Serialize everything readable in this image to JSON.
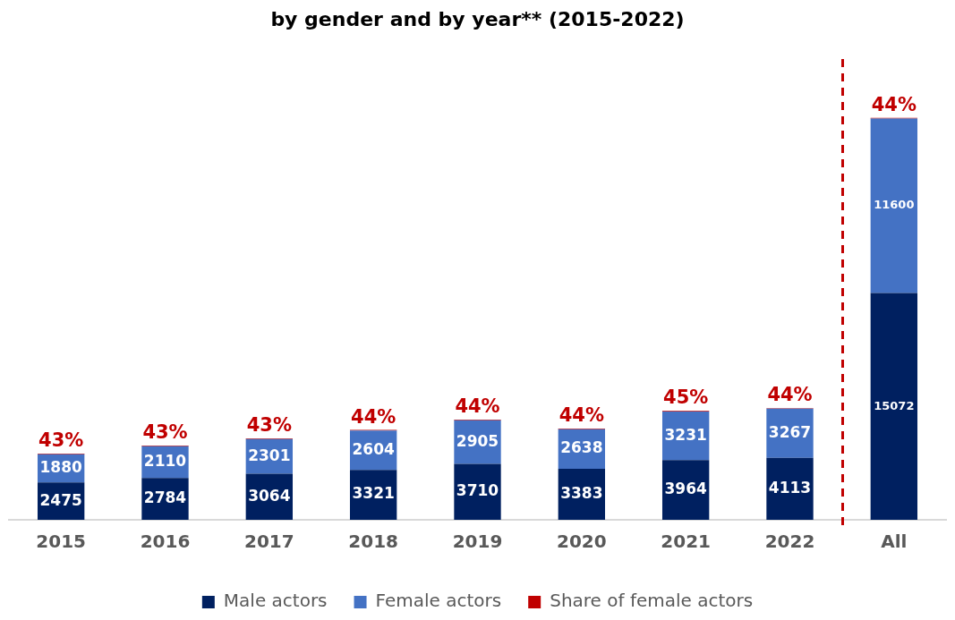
{
  "chart_data": {
    "type": "bar",
    "stacked": true,
    "title": "by gender and by year** (2015-2022)",
    "categories": [
      "2015",
      "2016",
      "2017",
      "2018",
      "2019",
      "2020",
      "2021",
      "2022",
      "All"
    ],
    "series": [
      {
        "name": "Male actors",
        "color": "#002060",
        "values": [
          2475,
          2784,
          3064,
          3321,
          3710,
          3383,
          3964,
          4113,
          15072
        ]
      },
      {
        "name": "Female actors",
        "color": "#4472c4",
        "values": [
          1880,
          2110,
          2301,
          2604,
          2905,
          2638,
          3231,
          3267,
          11600
        ]
      },
      {
        "name": "Share of female actors",
        "color": "#c00000",
        "values": [
          43,
          43,
          43,
          44,
          44,
          44,
          45,
          44,
          44
        ],
        "value_labels": [
          "43%",
          "43%",
          "43%",
          "44%",
          "44%",
          "44%",
          "45%",
          "44%",
          "44%"
        ]
      }
    ],
    "data_labels": true,
    "legend": "bottom",
    "grid": false
  }
}
